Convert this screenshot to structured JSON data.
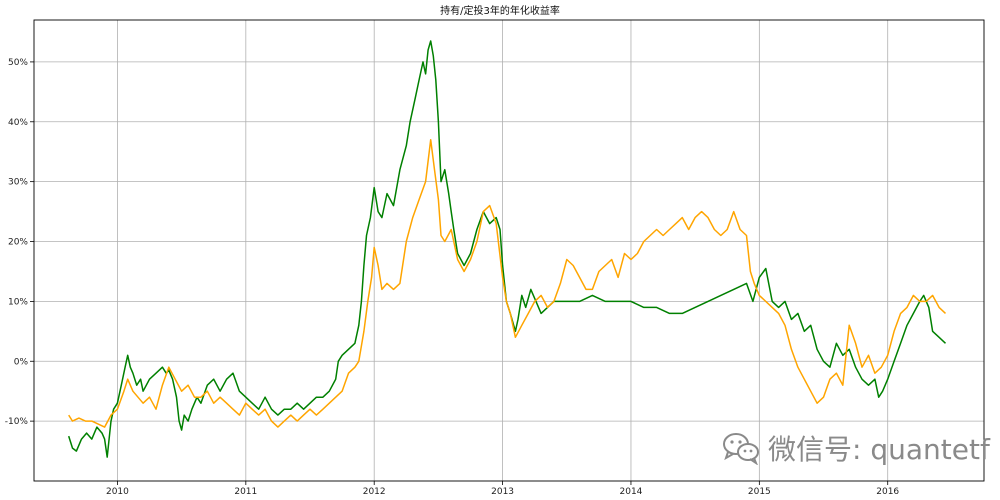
{
  "chart_data": {
    "type": "line",
    "title": "持有/定投3年的年化收益率",
    "xlabel": "",
    "ylabel": "",
    "x_ticks": [
      "2010",
      "2011",
      "2012",
      "2013",
      "2014",
      "2015",
      "2016"
    ],
    "y_ticks": [
      "-10%",
      "0%",
      "10%",
      "20%",
      "30%",
      "40%",
      "50%"
    ],
    "ylim": [
      -20,
      57
    ],
    "xlim": [
      2009.35,
      2016.75
    ],
    "grid": true,
    "series": [
      {
        "color": "#008000",
        "points": [
          [
            2009.62,
            -12.5
          ],
          [
            2009.65,
            -14.5
          ],
          [
            2009.68,
            -15
          ],
          [
            2009.72,
            -13
          ],
          [
            2009.76,
            -12
          ],
          [
            2009.8,
            -13
          ],
          [
            2009.84,
            -11
          ],
          [
            2009.88,
            -12
          ],
          [
            2009.9,
            -13
          ],
          [
            2009.92,
            -16
          ],
          [
            2009.95,
            -10
          ],
          [
            2009.97,
            -8
          ],
          [
            2010.0,
            -7
          ],
          [
            2010.03,
            -4
          ],
          [
            2010.06,
            -1
          ],
          [
            2010.08,
            1
          ],
          [
            2010.1,
            -1
          ],
          [
            2010.12,
            -2
          ],
          [
            2010.15,
            -4
          ],
          [
            2010.18,
            -3
          ],
          [
            2010.2,
            -5
          ],
          [
            2010.25,
            -3
          ],
          [
            2010.3,
            -2
          ],
          [
            2010.35,
            -1
          ],
          [
            2010.38,
            -2
          ],
          [
            2010.4,
            -1.5
          ],
          [
            2010.43,
            -3
          ],
          [
            2010.46,
            -6
          ],
          [
            2010.48,
            -10
          ],
          [
            2010.5,
            -11.5
          ],
          [
            2010.52,
            -9
          ],
          [
            2010.55,
            -10
          ],
          [
            2010.58,
            -8
          ],
          [
            2010.62,
            -6
          ],
          [
            2010.65,
            -7
          ],
          [
            2010.7,
            -4
          ],
          [
            2010.75,
            -3
          ],
          [
            2010.8,
            -5
          ],
          [
            2010.85,
            -3
          ],
          [
            2010.9,
            -2
          ],
          [
            2010.95,
            -5
          ],
          [
            2011.0,
            -6
          ],
          [
            2011.05,
            -7
          ],
          [
            2011.1,
            -8
          ],
          [
            2011.15,
            -6
          ],
          [
            2011.2,
            -8
          ],
          [
            2011.25,
            -9
          ],
          [
            2011.3,
            -8
          ],
          [
            2011.35,
            -8
          ],
          [
            2011.4,
            -7
          ],
          [
            2011.45,
            -8
          ],
          [
            2011.5,
            -7
          ],
          [
            2011.55,
            -6
          ],
          [
            2011.6,
            -6
          ],
          [
            2011.65,
            -5
          ],
          [
            2011.7,
            -3
          ],
          [
            2011.72,
            0
          ],
          [
            2011.75,
            1
          ],
          [
            2011.8,
            2
          ],
          [
            2011.85,
            3
          ],
          [
            2011.88,
            6
          ],
          [
            2011.9,
            10
          ],
          [
            2011.92,
            16
          ],
          [
            2011.94,
            21
          ],
          [
            2011.97,
            24
          ],
          [
            2012.0,
            29
          ],
          [
            2012.03,
            25
          ],
          [
            2012.06,
            24
          ],
          [
            2012.1,
            28
          ],
          [
            2012.15,
            26
          ],
          [
            2012.2,
            32
          ],
          [
            2012.25,
            36
          ],
          [
            2012.28,
            40
          ],
          [
            2012.32,
            44
          ],
          [
            2012.35,
            47
          ],
          [
            2012.38,
            50
          ],
          [
            2012.4,
            48
          ],
          [
            2012.42,
            52
          ],
          [
            2012.44,
            53.5
          ],
          [
            2012.46,
            51
          ],
          [
            2012.48,
            47
          ],
          [
            2012.5,
            40
          ],
          [
            2012.52,
            30
          ],
          [
            2012.55,
            32
          ],
          [
            2012.58,
            28
          ],
          [
            2012.6,
            25
          ],
          [
            2012.62,
            22
          ],
          [
            2012.65,
            18
          ],
          [
            2012.7,
            16
          ],
          [
            2012.75,
            18
          ],
          [
            2012.8,
            22
          ],
          [
            2012.85,
            25
          ],
          [
            2012.9,
            23
          ],
          [
            2012.95,
            24
          ],
          [
            2012.98,
            22
          ],
          [
            2013.0,
            16
          ],
          [
            2013.03,
            10
          ],
          [
            2013.06,
            8
          ],
          [
            2013.1,
            5
          ],
          [
            2013.12,
            7
          ],
          [
            2013.15,
            11
          ],
          [
            2013.18,
            9
          ],
          [
            2013.22,
            12
          ],
          [
            2013.26,
            10
          ],
          [
            2013.3,
            8
          ],
          [
            2013.35,
            9
          ],
          [
            2013.4,
            10
          ],
          [
            2013.5,
            10
          ],
          [
            2013.6,
            10
          ],
          [
            2013.7,
            11
          ],
          [
            2013.8,
            10
          ],
          [
            2013.9,
            10
          ],
          [
            2014.0,
            10
          ],
          [
            2014.1,
            9
          ],
          [
            2014.2,
            9
          ],
          [
            2014.3,
            8
          ],
          [
            2014.4,
            8
          ],
          [
            2014.5,
            9
          ],
          [
            2014.6,
            10
          ],
          [
            2014.7,
            11
          ],
          [
            2014.8,
            12
          ],
          [
            2014.9,
            13
          ],
          [
            2014.95,
            10
          ],
          [
            2015.0,
            14
          ],
          [
            2015.05,
            15.5
          ],
          [
            2015.1,
            10
          ],
          [
            2015.15,
            9
          ],
          [
            2015.2,
            10
          ],
          [
            2015.25,
            7
          ],
          [
            2015.3,
            8
          ],
          [
            2015.35,
            5
          ],
          [
            2015.4,
            6
          ],
          [
            2015.45,
            2
          ],
          [
            2015.5,
            0
          ],
          [
            2015.55,
            -1
          ],
          [
            2015.6,
            3
          ],
          [
            2015.65,
            1
          ],
          [
            2015.7,
            2
          ],
          [
            2015.75,
            -1
          ],
          [
            2015.8,
            -3
          ],
          [
            2015.85,
            -4
          ],
          [
            2015.9,
            -3
          ],
          [
            2015.93,
            -6
          ],
          [
            2015.96,
            -5
          ],
          [
            2016.0,
            -3
          ],
          [
            2016.05,
            0
          ],
          [
            2016.1,
            3
          ],
          [
            2016.15,
            6
          ],
          [
            2016.2,
            8
          ],
          [
            2016.25,
            10
          ],
          [
            2016.28,
            11
          ],
          [
            2016.32,
            9
          ],
          [
            2016.35,
            5
          ],
          [
            2016.4,
            4
          ],
          [
            2016.45,
            3
          ]
        ]
      },
      {
        "color": "#FFA500",
        "points": [
          [
            2009.62,
            -9
          ],
          [
            2009.65,
            -10
          ],
          [
            2009.7,
            -9.5
          ],
          [
            2009.75,
            -10
          ],
          [
            2009.8,
            -10
          ],
          [
            2009.85,
            -10.5
          ],
          [
            2009.9,
            -11
          ],
          [
            2009.95,
            -9
          ],
          [
            2010.0,
            -8
          ],
          [
            2010.05,
            -5
          ],
          [
            2010.08,
            -3
          ],
          [
            2010.12,
            -5
          ],
          [
            2010.16,
            -6
          ],
          [
            2010.2,
            -7
          ],
          [
            2010.25,
            -6
          ],
          [
            2010.3,
            -8
          ],
          [
            2010.35,
            -4
          ],
          [
            2010.4,
            -1
          ],
          [
            2010.45,
            -3
          ],
          [
            2010.5,
            -5
          ],
          [
            2010.55,
            -4
          ],
          [
            2010.6,
            -6
          ],
          [
            2010.65,
            -6
          ],
          [
            2010.7,
            -5
          ],
          [
            2010.75,
            -7
          ],
          [
            2010.8,
            -6
          ],
          [
            2010.85,
            -7
          ],
          [
            2010.9,
            -8
          ],
          [
            2010.95,
            -9
          ],
          [
            2011.0,
            -7
          ],
          [
            2011.05,
            -8
          ],
          [
            2011.1,
            -9
          ],
          [
            2011.15,
            -8
          ],
          [
            2011.2,
            -10
          ],
          [
            2011.25,
            -11
          ],
          [
            2011.3,
            -10
          ],
          [
            2011.35,
            -9
          ],
          [
            2011.4,
            -10
          ],
          [
            2011.45,
            -9
          ],
          [
            2011.5,
            -8
          ],
          [
            2011.55,
            -9
          ],
          [
            2011.6,
            -8
          ],
          [
            2011.65,
            -7
          ],
          [
            2011.7,
            -6
          ],
          [
            2011.75,
            -5
          ],
          [
            2011.8,
            -2
          ],
          [
            2011.85,
            -1
          ],
          [
            2011.88,
            0
          ],
          [
            2011.92,
            5
          ],
          [
            2011.95,
            10
          ],
          [
            2011.98,
            14
          ],
          [
            2012.0,
            19
          ],
          [
            2012.03,
            16
          ],
          [
            2012.06,
            12
          ],
          [
            2012.1,
            13
          ],
          [
            2012.15,
            12
          ],
          [
            2012.2,
            13
          ],
          [
            2012.25,
            20
          ],
          [
            2012.3,
            24
          ],
          [
            2012.35,
            27
          ],
          [
            2012.4,
            30
          ],
          [
            2012.44,
            37
          ],
          [
            2012.47,
            32
          ],
          [
            2012.5,
            27
          ],
          [
            2012.52,
            21
          ],
          [
            2012.55,
            20
          ],
          [
            2012.6,
            22
          ],
          [
            2012.65,
            17
          ],
          [
            2012.7,
            15
          ],
          [
            2012.75,
            17
          ],
          [
            2012.8,
            20
          ],
          [
            2012.85,
            25
          ],
          [
            2012.9,
            26
          ],
          [
            2012.95,
            23
          ],
          [
            2013.0,
            14
          ],
          [
            2013.03,
            10
          ],
          [
            2013.06,
            8
          ],
          [
            2013.1,
            4
          ],
          [
            2013.15,
            6
          ],
          [
            2013.2,
            8
          ],
          [
            2013.25,
            10
          ],
          [
            2013.3,
            11
          ],
          [
            2013.35,
            9
          ],
          [
            2013.4,
            10
          ],
          [
            2013.45,
            13
          ],
          [
            2013.5,
            17
          ],
          [
            2013.55,
            16
          ],
          [
            2013.6,
            14
          ],
          [
            2013.65,
            12
          ],
          [
            2013.7,
            12
          ],
          [
            2013.75,
            15
          ],
          [
            2013.8,
            16
          ],
          [
            2013.85,
            17
          ],
          [
            2013.9,
            14
          ],
          [
            2013.95,
            18
          ],
          [
            2014.0,
            17
          ],
          [
            2014.05,
            18
          ],
          [
            2014.1,
            20
          ],
          [
            2014.15,
            21
          ],
          [
            2014.2,
            22
          ],
          [
            2014.25,
            21
          ],
          [
            2014.3,
            22
          ],
          [
            2014.35,
            23
          ],
          [
            2014.4,
            24
          ],
          [
            2014.45,
            22
          ],
          [
            2014.5,
            24
          ],
          [
            2014.55,
            25
          ],
          [
            2014.6,
            24
          ],
          [
            2014.65,
            22
          ],
          [
            2014.7,
            21
          ],
          [
            2014.75,
            22
          ],
          [
            2014.8,
            25
          ],
          [
            2014.85,
            22
          ],
          [
            2014.9,
            21
          ],
          [
            2014.93,
            15
          ],
          [
            2014.96,
            13
          ],
          [
            2015.0,
            11
          ],
          [
            2015.05,
            10
          ],
          [
            2015.1,
            9
          ],
          [
            2015.15,
            8
          ],
          [
            2015.2,
            6
          ],
          [
            2015.25,
            2
          ],
          [
            2015.3,
            -1
          ],
          [
            2015.35,
            -3
          ],
          [
            2015.4,
            -5
          ],
          [
            2015.45,
            -7
          ],
          [
            2015.5,
            -6
          ],
          [
            2015.55,
            -3
          ],
          [
            2015.6,
            -2
          ],
          [
            2015.65,
            -4
          ],
          [
            2015.7,
            6
          ],
          [
            2015.75,
            3
          ],
          [
            2015.8,
            -1
          ],
          [
            2015.85,
            1
          ],
          [
            2015.9,
            -2
          ],
          [
            2015.95,
            -1
          ],
          [
            2016.0,
            1
          ],
          [
            2016.05,
            5
          ],
          [
            2016.1,
            8
          ],
          [
            2016.15,
            9
          ],
          [
            2016.2,
            11
          ],
          [
            2016.25,
            10
          ],
          [
            2016.3,
            10
          ],
          [
            2016.35,
            11
          ],
          [
            2016.4,
            9
          ],
          [
            2016.45,
            8
          ]
        ]
      }
    ]
  },
  "watermark": {
    "text": "微信号: quantetf",
    "icon": "wechat-icon"
  }
}
